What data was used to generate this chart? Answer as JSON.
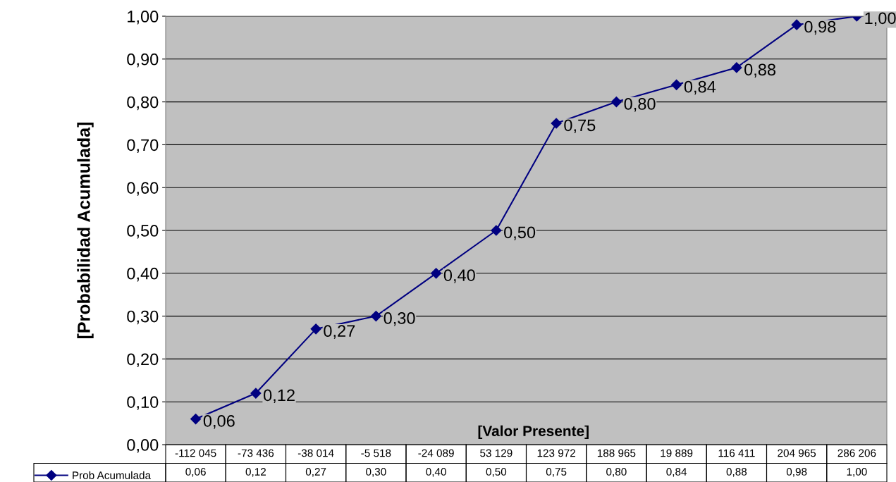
{
  "chart_data": {
    "type": "line",
    "xlabel": "[Valor Presente]",
    "ylabel": "[Probabilidad Acumulada]",
    "categories": [
      "-112 045",
      "-73 436",
      "-38 014",
      "-5 518",
      "-24 089",
      "53 129",
      "123 972",
      "188 965",
      "19 889",
      "116 411",
      "204 965",
      "286 206"
    ],
    "series": [
      {
        "name": "Prob Acumulada",
        "color": "#000080",
        "values": [
          0.06,
          0.12,
          0.27,
          0.3,
          0.4,
          0.5,
          0.75,
          0.8,
          0.84,
          0.88,
          0.98,
          1.0
        ],
        "value_labels": [
          "0,06",
          "0,12",
          "0,27",
          "0,30",
          "0,40",
          "0,50",
          "0,75",
          "0,80",
          "0,84",
          "0,88",
          "0,98",
          "1,00"
        ]
      }
    ],
    "ylim": [
      0,
      1
    ],
    "yticks": [
      {
        "value": 0,
        "label": "0,00"
      },
      {
        "value": 0.1,
        "label": "0,10"
      },
      {
        "value": 0.2,
        "label": "0,20"
      },
      {
        "value": 0.3,
        "label": "0,30"
      },
      {
        "value": 0.4,
        "label": "0,40"
      },
      {
        "value": 0.5,
        "label": "0,50"
      },
      {
        "value": 0.6,
        "label": "0,60"
      },
      {
        "value": 0.7,
        "label": "0,70"
      },
      {
        "value": 0.8,
        "label": "0,80"
      },
      {
        "value": 0.9,
        "label": "0,90"
      },
      {
        "value": 1.0,
        "label": "1,00"
      }
    ],
    "grid": "y",
    "legend": "bottom left",
    "marker": "diamond",
    "line_style": "solid"
  }
}
